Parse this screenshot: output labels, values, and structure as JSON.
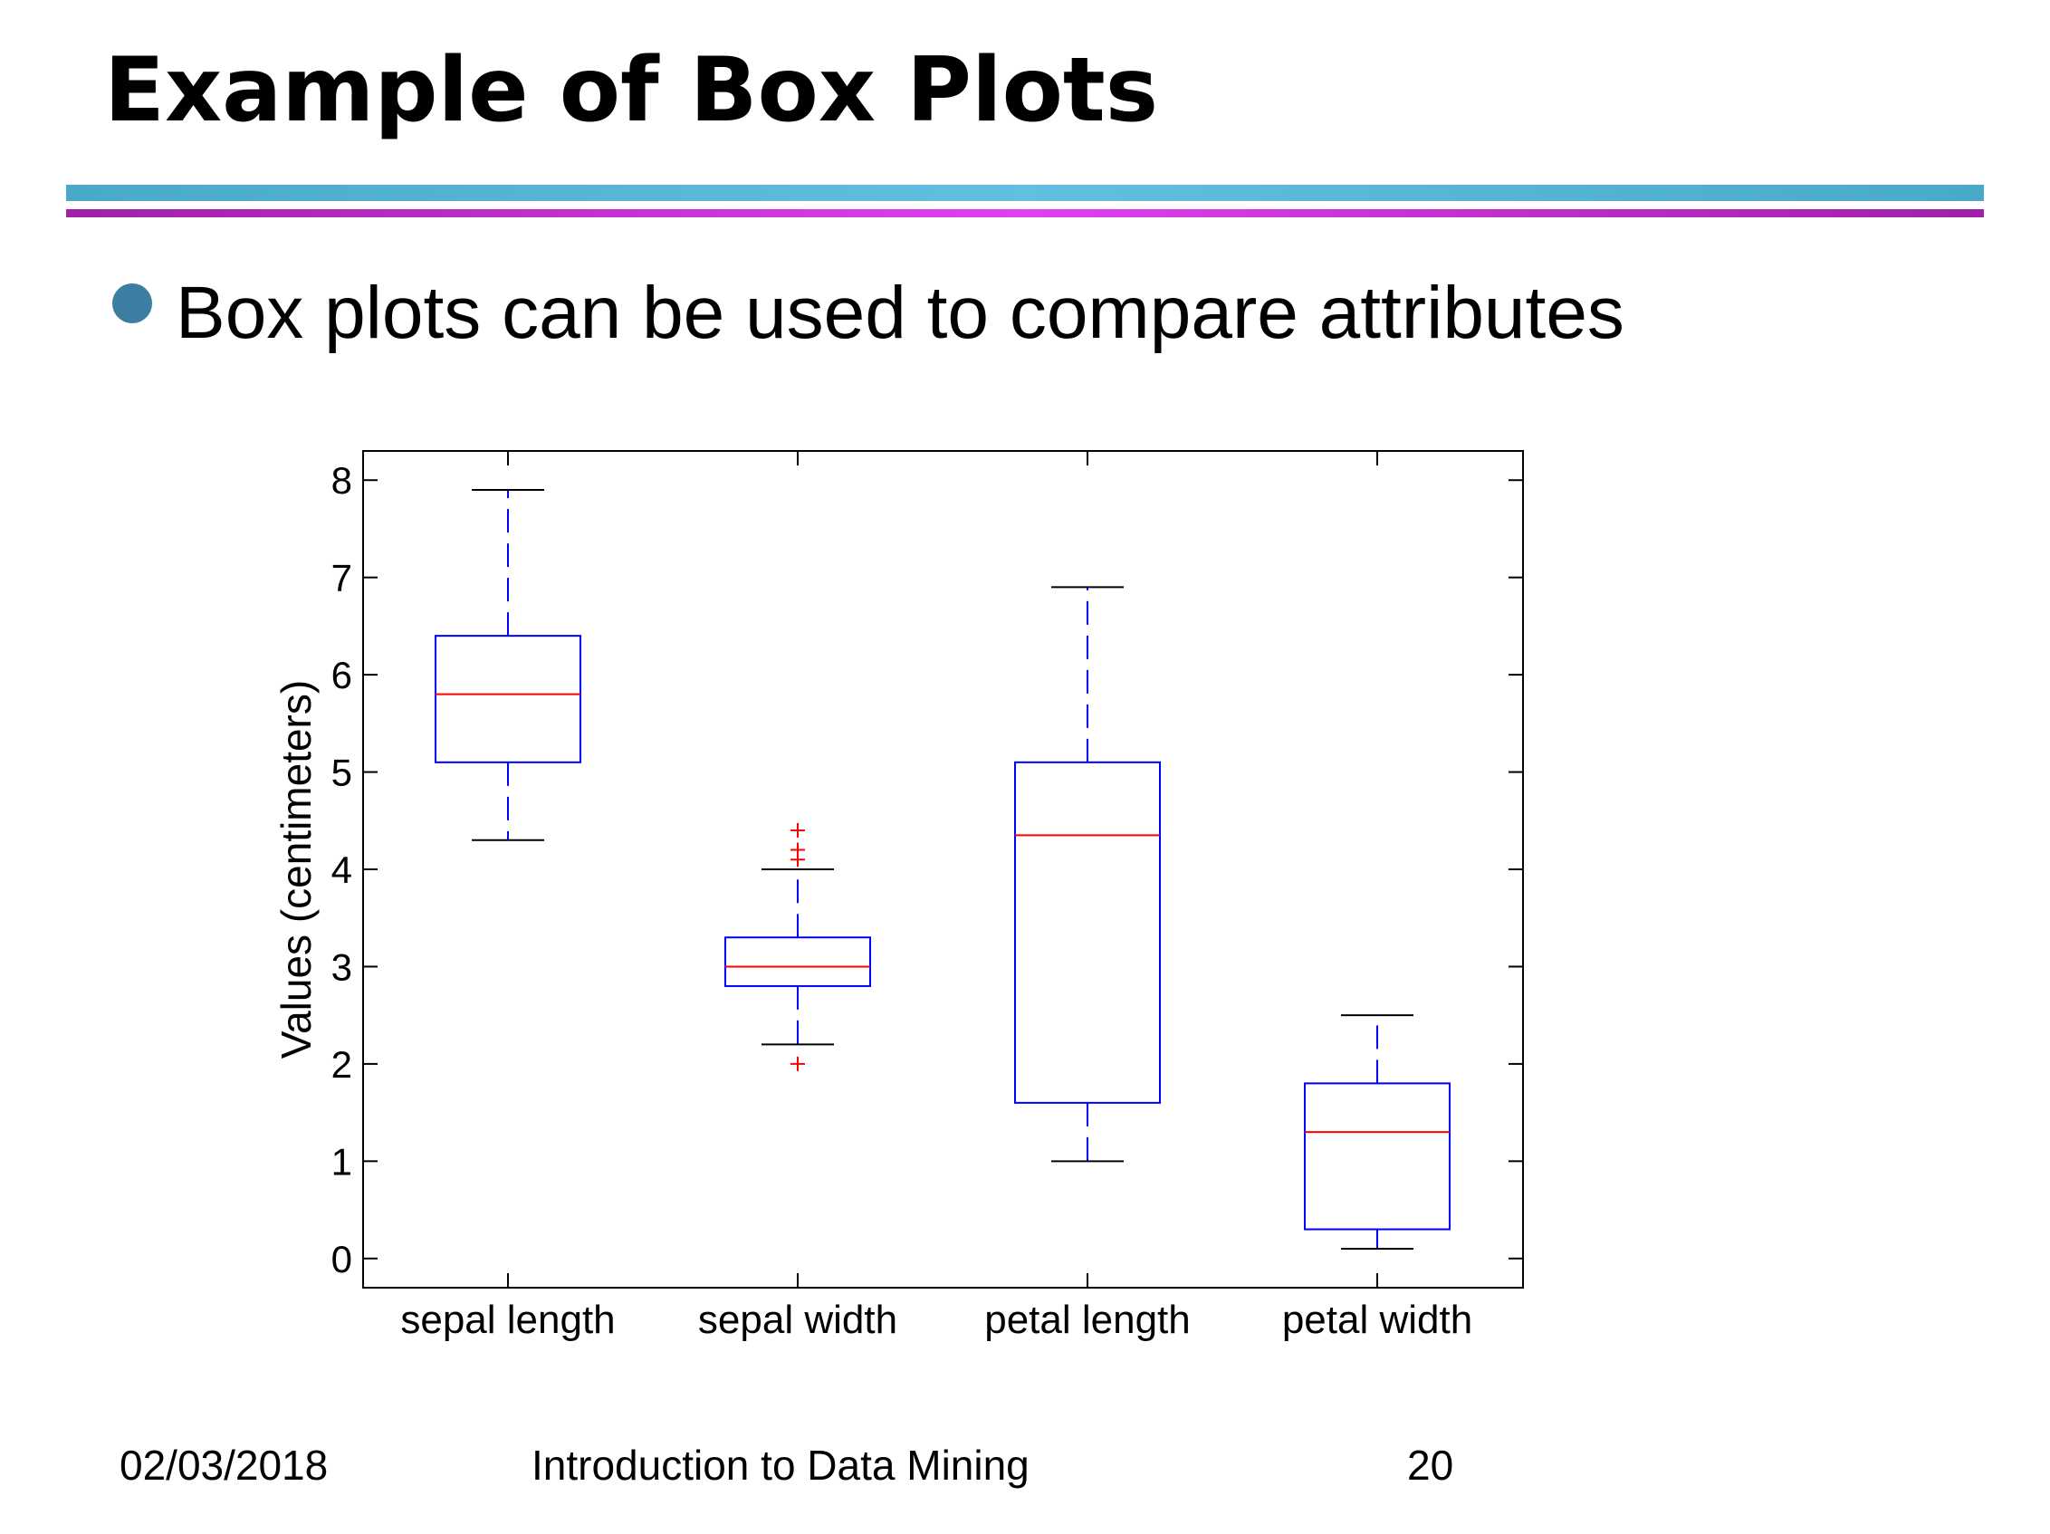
{
  "slide": {
    "title": "Example of Box Plots",
    "bullet": "Box plots can be used to compare attributes"
  },
  "footer": {
    "date": "02/03/2018",
    "course": "Introduction to Data Mining",
    "page": "20"
  },
  "colors": {
    "box": "#0000ff",
    "median": "#ff0000",
    "whisker": "#0000ff",
    "whisker_cap": "#000000",
    "outlier": "#ff0000",
    "rule_blue": "#4aa8c8",
    "rule_purple": "#c030d0",
    "bullet": "#3b7ea1"
  },
  "chart_data": {
    "type": "box",
    "title": "",
    "xlabel": "",
    "ylabel": "Values (centimeters)",
    "ylim": [
      -0.3,
      8.3
    ],
    "yticks": [
      0,
      1,
      2,
      3,
      4,
      5,
      6,
      7,
      8
    ],
    "grid": false,
    "categories": [
      "sepal length",
      "sepal width",
      "petal length",
      "petal width"
    ],
    "boxes": [
      {
        "category": "sepal length",
        "whisker_low": 4.3,
        "q1": 5.1,
        "median": 5.8,
        "q3": 6.4,
        "whisker_high": 7.9,
        "outliers": []
      },
      {
        "category": "sepal width",
        "whisker_low": 2.2,
        "q1": 2.8,
        "median": 3.0,
        "q3": 3.3,
        "whisker_high": 4.0,
        "outliers": [
          2.0,
          4.1,
          4.2,
          4.4
        ]
      },
      {
        "category": "petal length",
        "whisker_low": 1.0,
        "q1": 1.6,
        "median": 4.35,
        "q3": 5.1,
        "whisker_high": 6.9,
        "outliers": []
      },
      {
        "category": "petal width",
        "whisker_low": 0.1,
        "q1": 0.3,
        "median": 1.3,
        "q3": 1.8,
        "whisker_high": 2.5,
        "outliers": []
      }
    ]
  }
}
